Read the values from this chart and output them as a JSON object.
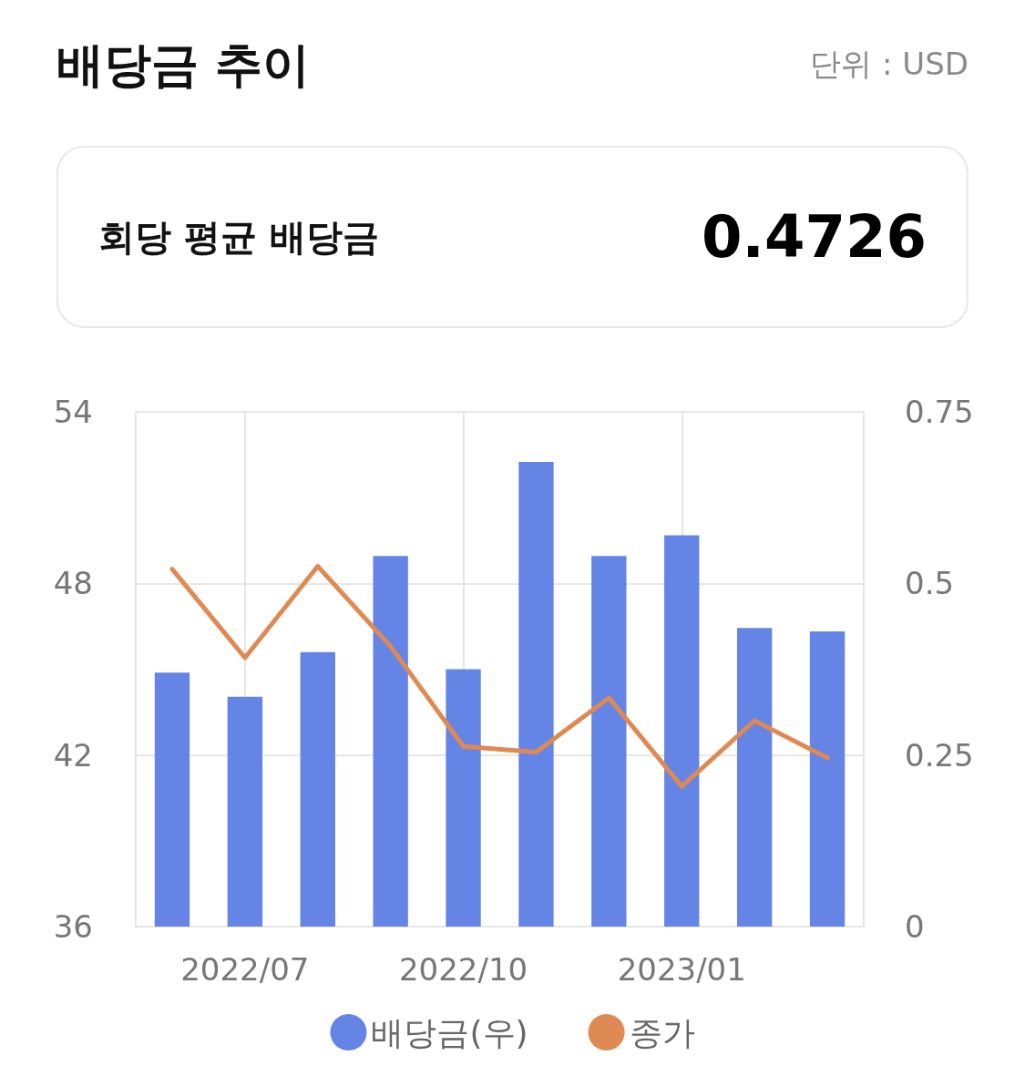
{
  "chart_data": {
    "type": "bar",
    "title": "배당금 추이",
    "annotations": [
      "단위 : USD",
      "회당 평균 배당금",
      "0.4726"
    ],
    "categories": [
      null,
      "2022/07",
      null,
      null,
      "2022/10",
      null,
      null,
      "2023/01",
      null,
      null
    ],
    "series": [
      {
        "name": "배당금(우)",
        "axis": "y2",
        "color": "#6484e6",
        "values": [
          0.37,
          0.335,
          0.4,
          0.54,
          0.375,
          0.677,
          0.54,
          0.57,
          0.435,
          0.43
        ]
      },
      {
        "name": "종가",
        "type": "line",
        "color": "#de8a52",
        "values": [
          48.5,
          45.4,
          48.6,
          45.8,
          42.3,
          42.1,
          44.0,
          40.9,
          43.2,
          41.9
        ]
      }
    ],
    "ylim": [
      36,
      54
    ],
    "yticks": [
      36,
      42,
      48,
      54
    ],
    "y2lim": [
      0,
      0.75
    ],
    "y2ticks": [
      0,
      0.25,
      0.5,
      0.75
    ],
    "grid": true,
    "legend": "bottom",
    "marker": "none"
  }
}
